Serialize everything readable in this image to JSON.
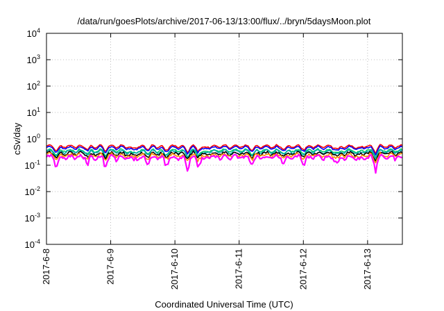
{
  "chart_data": {
    "type": "line",
    "title": "/data/run/goesPlots/archive/2017-06-13/13:00/flux/../bryn/5daysMoon.plot",
    "xlabel": "Coordinated Universal Time (UTC)",
    "ylabel": "cSv/day",
    "yscale": "log",
    "ylim": [
      0.0001,
      10000
    ],
    "xlim": [
      "2017-06-08 00:00",
      "2017-06-13 13:00"
    ],
    "x_ticks": [
      "2017-6-8",
      "2017-6-9",
      "2017-6-10",
      "2017-6-11",
      "2017-6-12",
      "2017-6-13"
    ],
    "y_ticks": [
      {
        "base": "10",
        "exp": "4"
      },
      {
        "base": "10",
        "exp": "3"
      },
      {
        "base": "10",
        "exp": "2"
      },
      {
        "base": "10",
        "exp": "1"
      },
      {
        "base": "10",
        "exp": "0"
      },
      {
        "base": "10",
        "exp": "-1"
      },
      {
        "base": "10",
        "exp": "-2"
      },
      {
        "base": "10",
        "exp": "-3"
      },
      {
        "base": "10",
        "exp": "-4"
      }
    ],
    "grid": true,
    "series": [
      {
        "color": "#ff0000",
        "level": 0.52
      },
      {
        "color": "#0000ff",
        "level": 0.46
      },
      {
        "color": "#00cc66",
        "level": 0.36
      },
      {
        "color": "#00aaaa",
        "level": 0.33
      },
      {
        "color": "#000000",
        "level": 0.28
      },
      {
        "color": "#ff8c00",
        "level": 0.24
      },
      {
        "color": "#ff00ff",
        "level": 0.2
      }
    ],
    "dips": [
      {
        "x": "2017-06-08 04:00",
        "depth": 0.65
      },
      {
        "x": "2017-06-08 15:30",
        "depth": 0.75
      },
      {
        "x": "2017-06-08 22:00",
        "depth": 0.7
      },
      {
        "x": "2017-06-09 08:00",
        "depth": 0.75
      },
      {
        "x": "2017-06-09 14:00",
        "depth": 0.8
      },
      {
        "x": "2017-06-09 20:30",
        "depth": 0.65
      },
      {
        "x": "2017-06-10 04:30",
        "depth": 0.6
      },
      {
        "x": "2017-06-10 08:30",
        "depth": 0.7
      },
      {
        "x": "2017-06-10 11:00",
        "depth": 0.8
      },
      {
        "x": "2017-06-11 05:00",
        "depth": 0.75
      },
      {
        "x": "2017-06-11 17:00",
        "depth": 0.8
      },
      {
        "x": "2017-06-12 00:30",
        "depth": 0.75
      },
      {
        "x": "2017-06-12 13:00",
        "depth": 0.7
      },
      {
        "x": "2017-06-12 20:30",
        "depth": 0.8
      },
      {
        "x": "2017-06-13 03:00",
        "depth": 0.6
      }
    ]
  }
}
